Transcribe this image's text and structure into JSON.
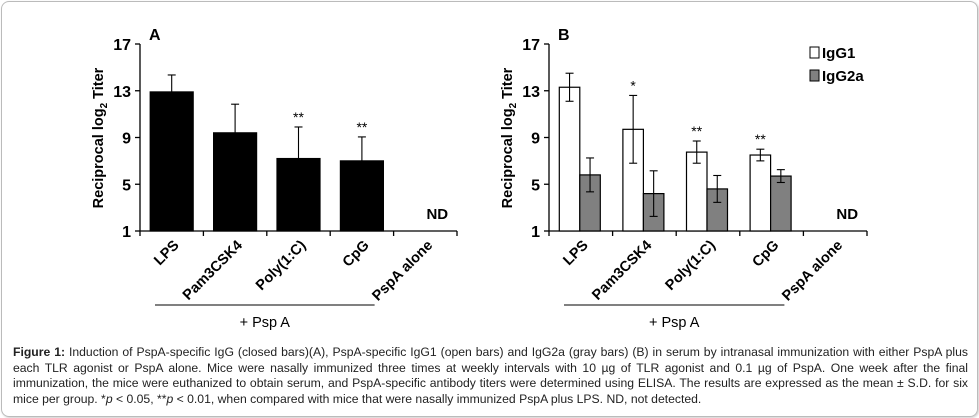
{
  "chart_data": [
    {
      "type": "bar",
      "panel_label": "A",
      "title": "",
      "xlabel": "",
      "ylabel": "Reciprocal log",
      "ylabel_sub": "2",
      "ylabel_tail": " Titer",
      "ylim": [
        1,
        17
      ],
      "yticks": [
        "1",
        "5",
        "9",
        "13",
        "17"
      ],
      "categories": [
        "LPS",
        "Pam3CSK4",
        "Poly(1:C)",
        "CpG",
        "PspA alone"
      ],
      "series": [
        {
          "name": "IgG",
          "color": "#000000",
          "values": [
            12.9,
            9.4,
            7.2,
            7.0,
            null
          ],
          "errors": [
            1.45,
            2.45,
            2.7,
            2.05,
            null
          ]
        }
      ],
      "annotations": [
        "",
        "",
        "**",
        "**",
        "ND"
      ],
      "group_label": "+ Psp A",
      "grid": false,
      "legend": null
    },
    {
      "type": "bar",
      "panel_label": "B",
      "title": "",
      "xlabel": "",
      "ylabel": "Reciprocal log",
      "ylabel_sub": "2",
      "ylabel_tail": " Titer",
      "ylim": [
        1,
        17
      ],
      "yticks": [
        "1",
        "5",
        "9",
        "13",
        "17"
      ],
      "categories": [
        "LPS",
        "Pam3CSK4",
        "Poly(1:C)",
        "CpG",
        "PspA alone"
      ],
      "series": [
        {
          "name": "IgG1",
          "color": "#ffffff",
          "values": [
            13.3,
            9.7,
            7.75,
            7.5,
            null
          ],
          "errors": [
            1.2,
            2.9,
            0.95,
            0.5,
            null
          ]
        },
        {
          "name": "IgG2a",
          "color": "#808080",
          "values": [
            5.8,
            4.2,
            4.6,
            5.7,
            null
          ],
          "errors": [
            1.45,
            1.95,
            1.15,
            0.55,
            null
          ]
        }
      ],
      "annotations": [
        "",
        "*",
        "**",
        "**",
        "ND"
      ],
      "group_label": "+ Psp A",
      "grid": false,
      "legend": "top-right"
    }
  ],
  "caption": {
    "label": "Figure 1:",
    "text_1": " Induction of PspA-specific IgG (closed bars)(A), PspA-specific IgG1 (open bars) and IgG2a (gray bars) (B) in serum by intranasal immunization with either PspA plus each TLR agonist or PspA alone. Mice were nasally immunized three times at weekly intervals with 10 µg of TLR agonist and 0.1 µg of PspA. One week after the final immunization, the mice were euthanized to obtain serum, and PspA-specific antibody titers were determined using ELISA. The results are expressed as the mean ± S.D. for six mice per group. *",
    "p1": "p",
    "text_2": " < 0.05, **",
    "p2": "p",
    "text_3": " < 0.01, when compared with mice that were nasally immunized PspA plus LPS. ND, not detected."
  }
}
